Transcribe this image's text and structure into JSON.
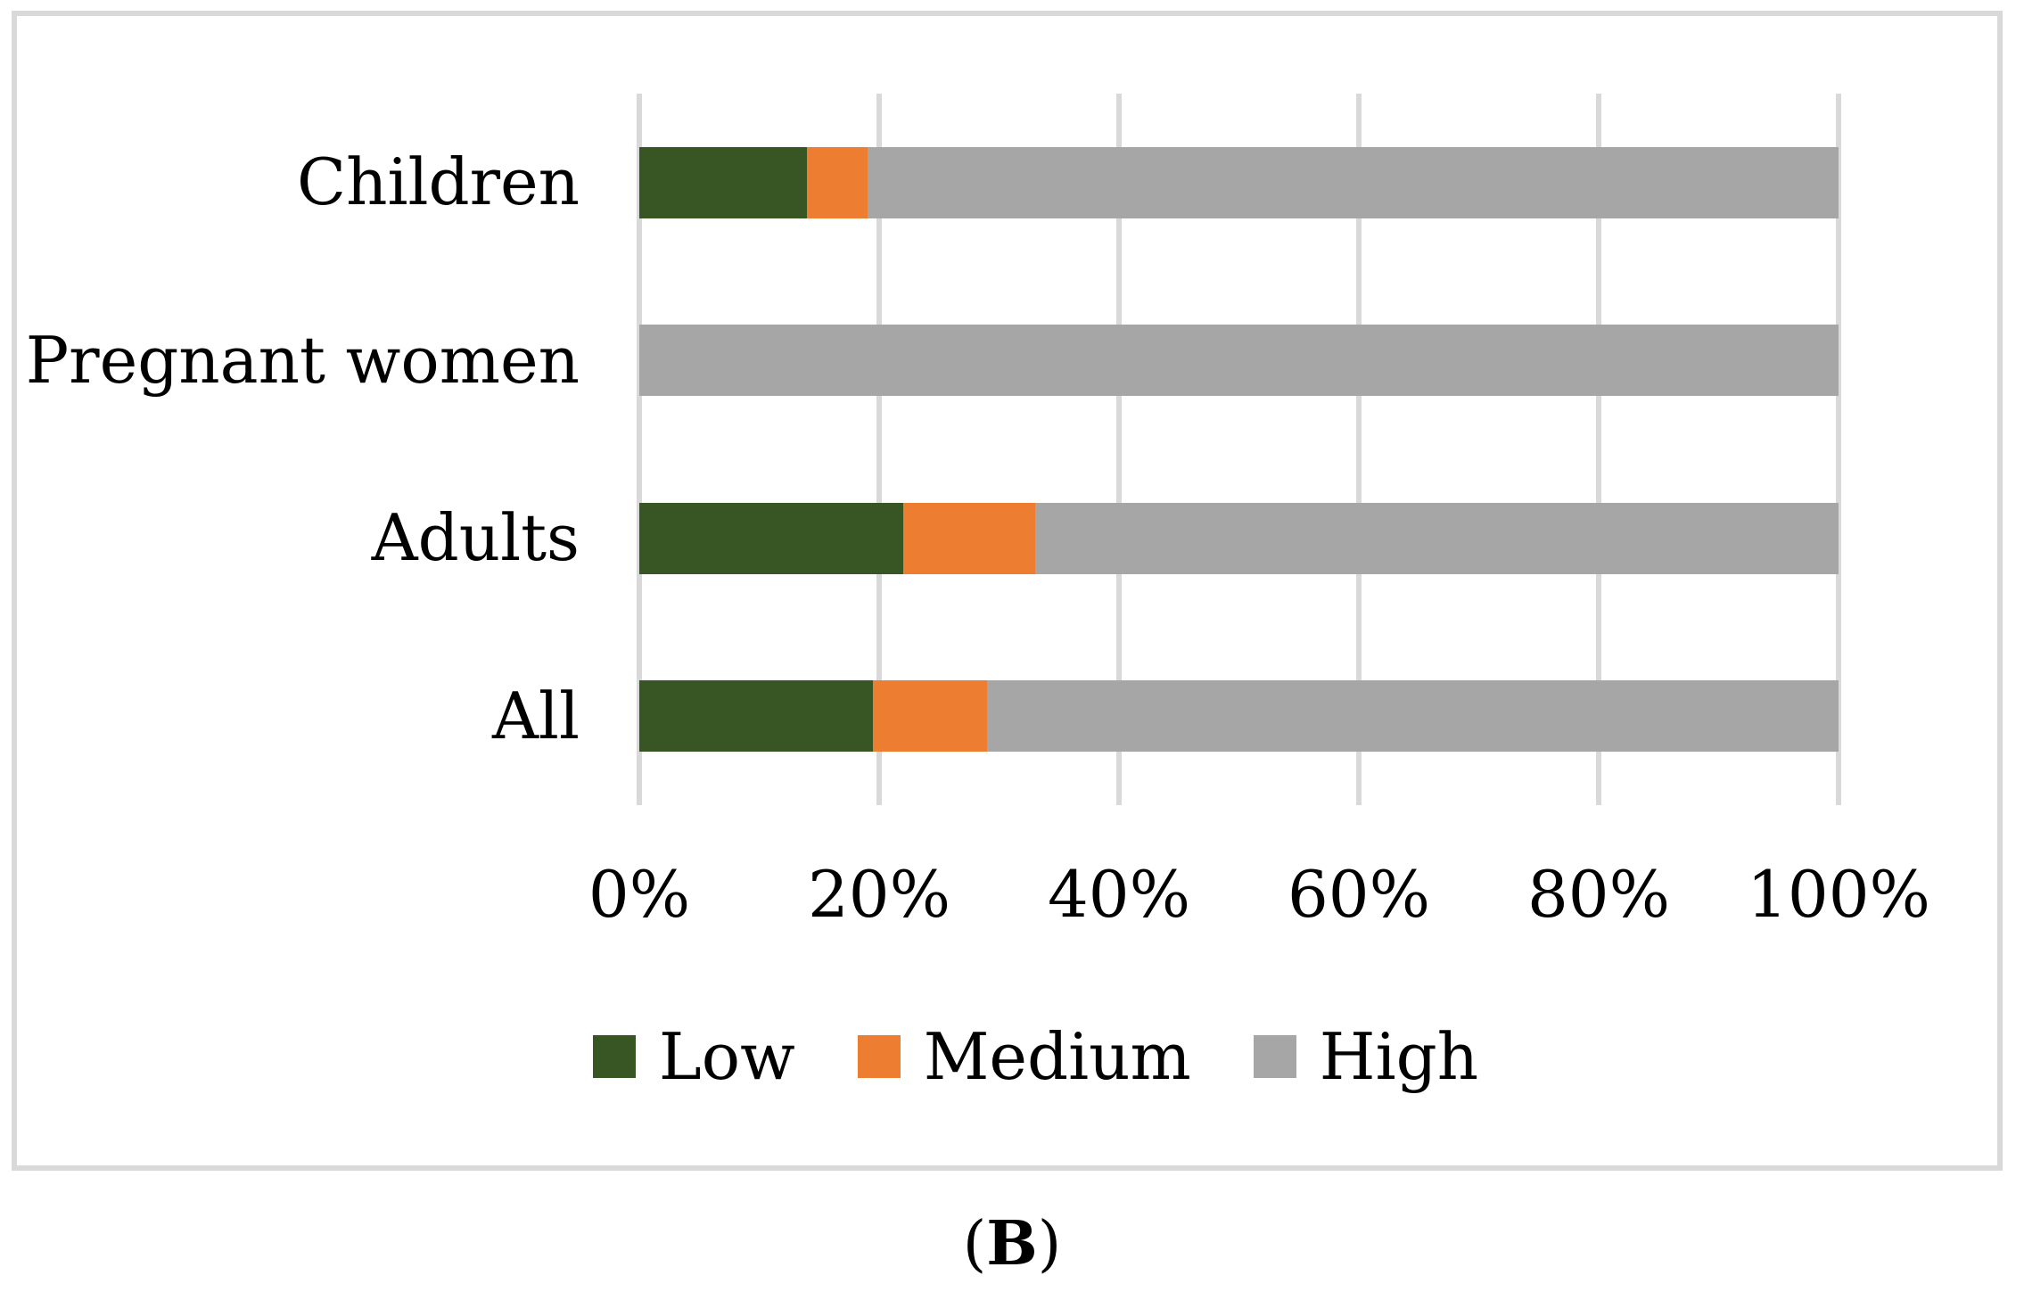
{
  "caption": {
    "open": "(",
    "letter": "B",
    "close": ")"
  },
  "chart_data": {
    "type": "bar",
    "orientation": "horizontal",
    "stacked": true,
    "stacked_to_100_percent": true,
    "categories": [
      "Children",
      "Pregnant women",
      "Adults",
      "All"
    ],
    "series": [
      {
        "name": "Low",
        "color": "#375623",
        "values": [
          14,
          0,
          22,
          19.5
        ]
      },
      {
        "name": "Medium",
        "color": "#ED7D31",
        "values": [
          5,
          0,
          11,
          9.5
        ]
      },
      {
        "name": "High",
        "color": "#A6A6A6",
        "values": [
          81,
          100,
          67,
          71
        ]
      }
    ],
    "x_axis": {
      "min": 0,
      "max": 100,
      "unit": "%",
      "tick_values": [
        0,
        20,
        40,
        60,
        80,
        100
      ],
      "tick_labels": [
        "0%",
        "20%",
        "40%",
        "60%",
        "80%",
        "100%"
      ]
    },
    "legend": {
      "position": "bottom",
      "entries": [
        "Low",
        "Medium",
        "High"
      ]
    },
    "grid": {
      "vertical_gridlines": true,
      "gridline_color": "#D9D9D9"
    },
    "frame_color": "#D9D9D9",
    "title": "",
    "xlabel": "",
    "ylabel": ""
  }
}
